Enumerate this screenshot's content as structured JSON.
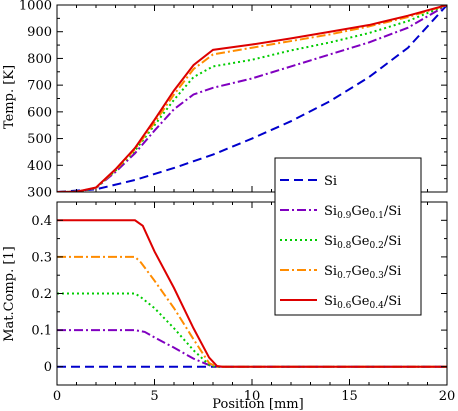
{
  "chart_data": [
    {
      "type": "line",
      "ylabel": "Temp. [K]",
      "xlim": [
        0,
        20
      ],
      "ylim": [
        300,
        1000
      ],
      "x_ticks": [
        0,
        5,
        10,
        15,
        20
      ],
      "y_ticks": [
        300,
        400,
        500,
        600,
        700,
        800,
        900,
        1000
      ],
      "series": [
        {
          "name": "Si",
          "color": "#0000cc",
          "dash": "dashed",
          "points": [
            [
              0,
              300
            ],
            [
              2,
              310
            ],
            [
              4,
              345
            ],
            [
              6,
              390
            ],
            [
              8,
              440
            ],
            [
              10,
              500
            ],
            [
              12,
              565
            ],
            [
              14,
              640
            ],
            [
              16,
              730
            ],
            [
              18,
              840
            ],
            [
              20,
              1000
            ]
          ]
        },
        {
          "name": "Si0.9Ge0.1/Si",
          "color": "#8000c0",
          "dash": "dashdot",
          "points": [
            [
              0,
              300
            ],
            [
              1,
              301
            ],
            [
              2,
              315
            ],
            [
              3,
              375
            ],
            [
              4,
              445
            ],
            [
              5,
              530
            ],
            [
              6,
              610
            ],
            [
              7,
              665
            ],
            [
              8,
              690
            ],
            [
              10,
              725
            ],
            [
              12,
              770
            ],
            [
              14,
              815
            ],
            [
              16,
              860
            ],
            [
              18,
              915
            ],
            [
              20,
              1000
            ]
          ]
        },
        {
          "name": "Si0.8Ge0.2/Si",
          "color": "#00cc00",
          "dash": "dotted",
          "points": [
            [
              0,
              300
            ],
            [
              1,
              301
            ],
            [
              2,
              315
            ],
            [
              3,
              380
            ],
            [
              4,
              455
            ],
            [
              5,
              550
            ],
            [
              6,
              645
            ],
            [
              7,
              730
            ],
            [
              8,
              770
            ],
            [
              10,
              795
            ],
            [
              12,
              830
            ],
            [
              14,
              860
            ],
            [
              16,
              895
            ],
            [
              18,
              940
            ],
            [
              20,
              1000
            ]
          ]
        },
        {
          "name": "Si0.7Ge0.3/Si",
          "color": "#ff8c00",
          "dash": "dashdot",
          "points": [
            [
              0,
              300
            ],
            [
              1,
              301
            ],
            [
              2,
              316
            ],
            [
              3,
              382
            ],
            [
              4,
              460
            ],
            [
              5,
              560
            ],
            [
              6,
              665
            ],
            [
              7,
              760
            ],
            [
              8,
              815
            ],
            [
              10,
              840
            ],
            [
              12,
              865
            ],
            [
              14,
              890
            ],
            [
              16,
              920
            ],
            [
              18,
              955
            ],
            [
              20,
              1000
            ]
          ]
        },
        {
          "name": "Si0.6Ge0.4/Si",
          "color": "#dd0000",
          "dash": "solid",
          "points": [
            [
              0,
              300
            ],
            [
              1,
              301
            ],
            [
              2,
              317
            ],
            [
              3,
              385
            ],
            [
              4,
              465
            ],
            [
              5,
              570
            ],
            [
              6,
              680
            ],
            [
              7,
              775
            ],
            [
              8,
              832
            ],
            [
              10,
              852
            ],
            [
              12,
              875
            ],
            [
              14,
              900
            ],
            [
              16,
              925
            ],
            [
              18,
              960
            ],
            [
              20,
              1000
            ]
          ]
        }
      ]
    },
    {
      "type": "line",
      "xlabel": "Position [mm]",
      "ylabel": "Mat.Comp. [1]",
      "xlim": [
        0,
        20
      ],
      "ylim": [
        -0.05,
        0.45
      ],
      "x_ticks": [
        0,
        5,
        10,
        15,
        20
      ],
      "y_ticks": [
        0,
        0.1,
        0.2,
        0.3,
        0.4
      ],
      "y_tick_labels": [
        "0",
        "0.1",
        "0.2",
        "0.3",
        "0.4"
      ],
      "series": [
        {
          "name": "Si",
          "color": "#0000cc",
          "dash": "dashed",
          "points": [
            [
              0,
              0
            ],
            [
              20,
              0
            ]
          ]
        },
        {
          "name": "Si0.9Ge0.1/Si",
          "color": "#8000c0",
          "dash": "dashdot",
          "points": [
            [
              0,
              0.1
            ],
            [
              4,
              0.1
            ],
            [
              4.5,
              0.095
            ],
            [
              5,
              0.08
            ],
            [
              6,
              0.052
            ],
            [
              7,
              0.022
            ],
            [
              8,
              0
            ],
            [
              20,
              0
            ]
          ]
        },
        {
          "name": "Si0.8Ge0.2/Si",
          "color": "#00cc00",
          "dash": "dotted",
          "points": [
            [
              0,
              0.2
            ],
            [
              4,
              0.2
            ],
            [
              4.3,
              0.19
            ],
            [
              5,
              0.16
            ],
            [
              6,
              0.105
            ],
            [
              7,
              0.045
            ],
            [
              7.8,
              0.005
            ],
            [
              8.1,
              0
            ],
            [
              20,
              0
            ]
          ]
        },
        {
          "name": "Si0.7Ge0.3/Si",
          "color": "#ff8c00",
          "dash": "dashdot",
          "points": [
            [
              0,
              0.3
            ],
            [
              4,
              0.3
            ],
            [
              4.3,
              0.285
            ],
            [
              5,
              0.235
            ],
            [
              6,
              0.16
            ],
            [
              7,
              0.075
            ],
            [
              7.8,
              0.01
            ],
            [
              8.2,
              0
            ],
            [
              20,
              0
            ]
          ]
        },
        {
          "name": "Si0.6Ge0.4/Si",
          "color": "#dd0000",
          "dash": "solid",
          "points": [
            [
              0,
              0.4
            ],
            [
              4,
              0.4
            ],
            [
              4.4,
              0.385
            ],
            [
              5,
              0.315
            ],
            [
              6,
              0.215
            ],
            [
              7,
              0.105
            ],
            [
              7.8,
              0.025
            ],
            [
              8.2,
              0.002
            ],
            [
              8.5,
              0
            ],
            [
              20,
              0
            ]
          ]
        }
      ]
    }
  ],
  "legend": {
    "placement": "inside-right, spanning both panels",
    "entries": [
      {
        "base": "Si",
        "sub1": "",
        "mid": "",
        "sub2": "",
        "tail": "",
        "color": "#0000cc",
        "dash": "dashed"
      },
      {
        "base": "Si",
        "sub1": "0.9",
        "mid": "Ge",
        "sub2": "0.1",
        "tail": "/Si",
        "color": "#8000c0",
        "dash": "dashdot"
      },
      {
        "base": "Si",
        "sub1": "0.8",
        "mid": "Ge",
        "sub2": "0.2",
        "tail": "/Si",
        "color": "#00cc00",
        "dash": "dotted"
      },
      {
        "base": "Si",
        "sub1": "0.7",
        "mid": "Ge",
        "sub2": "0.3",
        "tail": "/Si",
        "color": "#ff8c00",
        "dash": "dashdot"
      },
      {
        "base": "Si",
        "sub1": "0.6",
        "mid": "Ge",
        "sub2": "0.4",
        "tail": "/Si",
        "color": "#dd0000",
        "dash": "solid"
      }
    ]
  }
}
